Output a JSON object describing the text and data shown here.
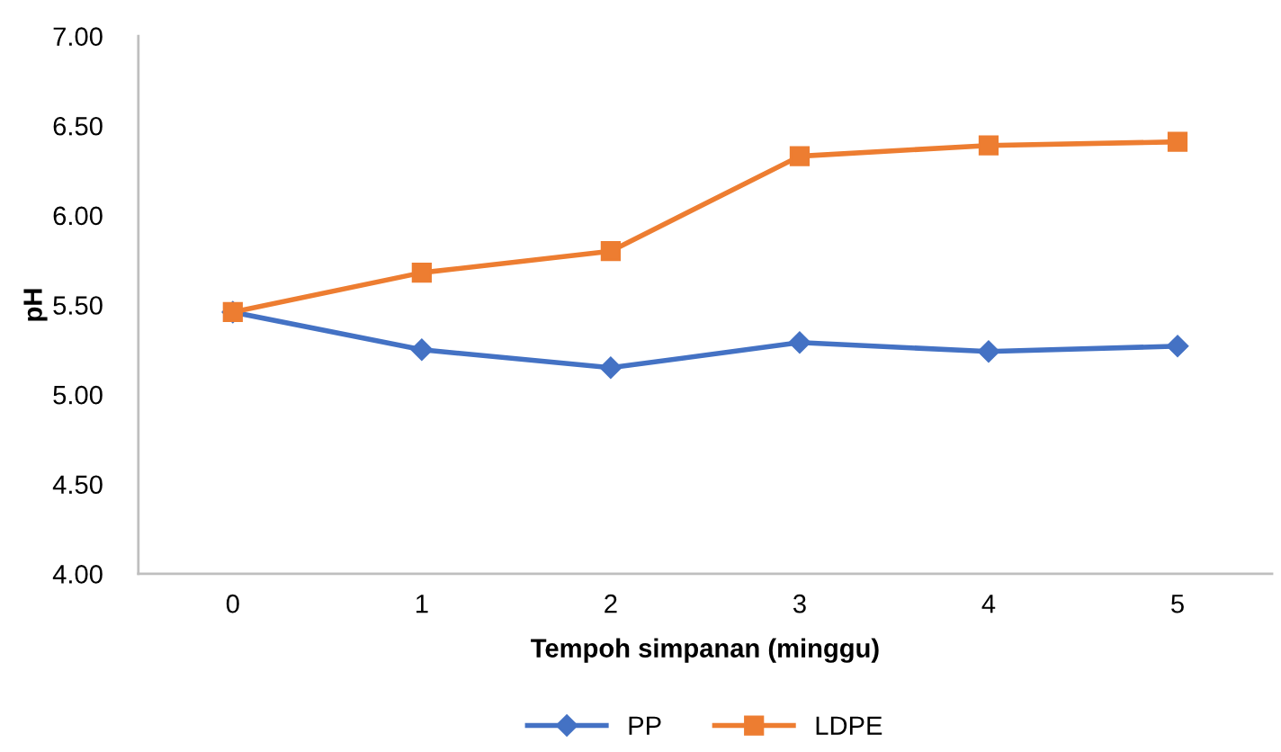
{
  "chart_data": {
    "type": "line",
    "xlabel": "Tempoh simpanan (minggu)",
    "ylabel": "pH",
    "categories": [
      "0",
      "1",
      "2",
      "3",
      "4",
      "5"
    ],
    "series": [
      {
        "name": "PP",
        "color": "#4472c4",
        "marker": "diamond",
        "values": [
          5.46,
          5.25,
          5.15,
          5.29,
          5.24,
          5.27
        ]
      },
      {
        "name": "LDPE",
        "color": "#ed7d31",
        "marker": "square",
        "values": [
          5.46,
          5.68,
          5.8,
          6.33,
          6.39,
          6.41
        ]
      }
    ],
    "ylim": [
      4.0,
      7.0
    ],
    "yticks": [
      {
        "value": 4.0,
        "label": "4.00"
      },
      {
        "value": 4.5,
        "label": "4.50"
      },
      {
        "value": 5.0,
        "label": "5.00"
      },
      {
        "value": 5.5,
        "label": "5.50"
      },
      {
        "value": 6.0,
        "label": "6.00"
      },
      {
        "value": 6.5,
        "label": "6.50"
      },
      {
        "value": 7.0,
        "label": "7.00"
      }
    ],
    "grid": false,
    "legend": "bottom",
    "line_style": "solid"
  }
}
